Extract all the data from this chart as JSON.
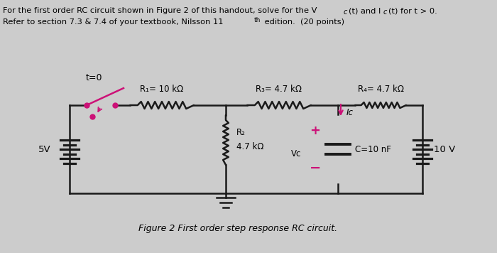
{
  "bg_color": "#cccccc",
  "wire_color": "#1a1a1a",
  "switch_pink": "#cc1177",
  "pink_arrow": "#cc1177",
  "R1_label": "R₁= 10 kΩ",
  "R2_label": "R₂",
  "R2_val": "4.7 kΩ",
  "R3_label": "R₃= 4.7 kΩ",
  "R4_label": "R₄= 4.7 kΩ",
  "C_label": "C=10 nF",
  "Vc_label": "Vc",
  "Ic_label": "Ic",
  "V1_label": "5V",
  "V2_label": "10 V",
  "t0_label": "t=0",
  "caption": "Figure 2 First order step response RC circuit.",
  "header1": "For the first order RC circuit shown in Figure 2 of this handout, solve for the V",
  "header1_sub": "c",
  "header1_rest": "(t) and I",
  "header1_sub2": "c",
  "header1_end": "(t) for t > 0.",
  "header2": "Refer to section 7.3 & 7.4 of your textbook, Nilsson 11",
  "header2_sup": "th",
  "header2_end": " edition.  (20 points)"
}
